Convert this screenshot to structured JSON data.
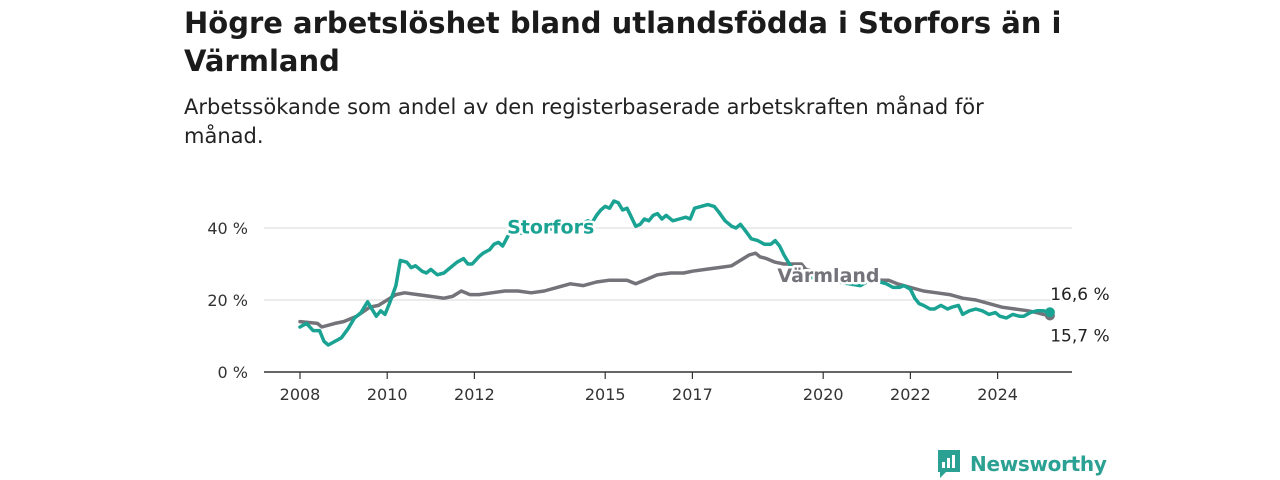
{
  "header": {
    "title": "Högre arbetslöshet bland utlandsfödda i Storfors än i Värmland",
    "subtitle": "Arbetssökande som andel av den registerbaserade arbetskraften månad för månad."
  },
  "brand": {
    "name": "Newsworthy",
    "icon": "newsworthy-logo-icon",
    "color": "#2aa193"
  },
  "chart_data": {
    "type": "line",
    "title": "Högre arbetslöshet bland utlandsfödda i Storfors än i Värmland",
    "subtitle": "Arbetssökande som andel av den registerbaserade arbetskraften månad för månad.",
    "xlabel": "",
    "ylabel": "",
    "xlim": [
      2008,
      2025.25
    ],
    "ylim": [
      0,
      50
    ],
    "grid": true,
    "legend": "inline labels",
    "x_ticks": [
      {
        "value": 2008,
        "label": "2008"
      },
      {
        "value": 2010,
        "label": "2010"
      },
      {
        "value": 2012,
        "label": "2012"
      },
      {
        "value": 2015,
        "label": "2015"
      },
      {
        "value": 2017,
        "label": "2017"
      },
      {
        "value": 2020,
        "label": "2020"
      },
      {
        "value": 2022,
        "label": "2022"
      },
      {
        "value": 2024,
        "label": "2024"
      }
    ],
    "y_ticks": [
      {
        "value": 0,
        "label": "0 %"
      },
      {
        "value": 20,
        "label": "20 %"
      },
      {
        "value": 40,
        "label": "40 %"
      }
    ],
    "series": [
      {
        "name": "Storfors",
        "color": "#1aa393",
        "label_at": [
          2012.75,
          38.5
        ],
        "end_label": "16,6 %",
        "end_label_position": "above",
        "points": [
          [
            2008.0,
            12.5
          ],
          [
            2008.15,
            13.5
          ],
          [
            2008.3,
            11.5
          ],
          [
            2008.45,
            11.5
          ],
          [
            2008.55,
            8.5
          ],
          [
            2008.65,
            7.5
          ],
          [
            2008.8,
            8.5
          ],
          [
            2008.95,
            9.5
          ],
          [
            2009.1,
            12.0
          ],
          [
            2009.25,
            15.0
          ],
          [
            2009.4,
            16.5
          ],
          [
            2009.55,
            19.5
          ],
          [
            2009.65,
            17.5
          ],
          [
            2009.75,
            15.5
          ],
          [
            2009.85,
            17.0
          ],
          [
            2009.95,
            16.0
          ],
          [
            2010.05,
            19.0
          ],
          [
            2010.2,
            24.0
          ],
          [
            2010.3,
            31.0
          ],
          [
            2010.45,
            30.5
          ],
          [
            2010.55,
            29.0
          ],
          [
            2010.65,
            29.5
          ],
          [
            2010.8,
            28.0
          ],
          [
            2010.9,
            27.5
          ],
          [
            2011.0,
            28.5
          ],
          [
            2011.15,
            27.0
          ],
          [
            2011.3,
            27.5
          ],
          [
            2011.45,
            29.0
          ],
          [
            2011.6,
            30.5
          ],
          [
            2011.75,
            31.5
          ],
          [
            2011.85,
            30.0
          ],
          [
            2011.95,
            30.0
          ],
          [
            2012.1,
            32.0
          ],
          [
            2012.2,
            33.0
          ],
          [
            2012.35,
            34.0
          ],
          [
            2012.45,
            35.5
          ],
          [
            2012.55,
            36.0
          ],
          [
            2012.65,
            35.0
          ],
          [
            2012.8,
            38.5
          ],
          [
            2012.95,
            39.0
          ],
          [
            2013.1,
            38.5
          ],
          [
            2014.45,
            41.0
          ],
          [
            2014.6,
            42.0
          ],
          [
            2014.7,
            41.5
          ],
          [
            2014.8,
            43.5
          ],
          [
            2014.9,
            45.0
          ],
          [
            2015.0,
            46.0
          ],
          [
            2015.1,
            45.5
          ],
          [
            2015.2,
            47.5
          ],
          [
            2015.3,
            47.0
          ],
          [
            2015.4,
            45.0
          ],
          [
            2015.5,
            45.5
          ],
          [
            2015.6,
            43.0
          ],
          [
            2015.7,
            40.5
          ],
          [
            2015.8,
            41.0
          ],
          [
            2015.9,
            42.5
          ],
          [
            2016.0,
            42.0
          ],
          [
            2016.1,
            43.5
          ],
          [
            2016.2,
            44.0
          ],
          [
            2016.3,
            42.5
          ],
          [
            2016.4,
            43.5
          ],
          [
            2016.55,
            42.0
          ],
          [
            2016.7,
            42.5
          ],
          [
            2016.85,
            43.0
          ],
          [
            2016.95,
            42.5
          ],
          [
            2017.05,
            45.5
          ],
          [
            2017.2,
            46.0
          ],
          [
            2017.35,
            46.5
          ],
          [
            2017.5,
            46.0
          ],
          [
            2017.6,
            44.5
          ],
          [
            2017.75,
            42.0
          ],
          [
            2017.9,
            40.5
          ],
          [
            2018.0,
            40.0
          ],
          [
            2018.1,
            41.0
          ],
          [
            2018.2,
            39.5
          ],
          [
            2018.35,
            37.0
          ],
          [
            2018.5,
            36.5
          ],
          [
            2018.65,
            35.5
          ],
          [
            2018.8,
            35.5
          ],
          [
            2018.9,
            36.5
          ],
          [
            2019.0,
            35.0
          ],
          [
            2019.1,
            32.5
          ],
          [
            2019.25,
            29.5
          ],
          [
            2019.35,
            27.0
          ],
          [
            2020.85,
            24.0
          ],
          [
            2021.0,
            25.0
          ],
          [
            2021.15,
            26.5
          ],
          [
            2021.3,
            25.0
          ],
          [
            2021.45,
            24.5
          ],
          [
            2021.6,
            23.5
          ],
          [
            2021.75,
            23.5
          ],
          [
            2021.85,
            24.0
          ],
          [
            2022.0,
            23.0
          ],
          [
            2022.1,
            20.5
          ],
          [
            2022.2,
            19.0
          ],
          [
            2022.3,
            18.5
          ],
          [
            2022.45,
            17.5
          ],
          [
            2022.55,
            17.5
          ],
          [
            2022.7,
            18.5
          ],
          [
            2022.85,
            17.5
          ],
          [
            2022.95,
            18.0
          ],
          [
            2023.1,
            18.5
          ],
          [
            2023.2,
            16.0
          ],
          [
            2023.35,
            17.0
          ],
          [
            2023.5,
            17.5
          ],
          [
            2023.65,
            17.0
          ],
          [
            2023.8,
            16.0
          ],
          [
            2023.95,
            16.5
          ],
          [
            2024.05,
            15.5
          ],
          [
            2024.2,
            15.0
          ],
          [
            2024.35,
            16.0
          ],
          [
            2024.5,
            15.5
          ],
          [
            2024.6,
            15.5
          ],
          [
            2024.75,
            16.5
          ],
          [
            2024.9,
            17.0
          ],
          [
            2025.05,
            17.0
          ],
          [
            2025.2,
            16.6
          ]
        ]
      },
      {
        "name": "Värmland",
        "color": "#74737a",
        "label_at": [
          2018.95,
          25.0
        ],
        "end_label": "15,7 %",
        "end_label_position": "below",
        "points": [
          [
            2008.0,
            14.0
          ],
          [
            2008.4,
            13.5
          ],
          [
            2008.5,
            12.5
          ],
          [
            2008.8,
            13.5
          ],
          [
            2009.0,
            14.0
          ],
          [
            2009.3,
            15.5
          ],
          [
            2009.6,
            18.0
          ],
          [
            2009.8,
            18.5
          ],
          [
            2010.0,
            20.0
          ],
          [
            2010.2,
            21.5
          ],
          [
            2010.4,
            22.0
          ],
          [
            2010.7,
            21.5
          ],
          [
            2011.0,
            21.0
          ],
          [
            2011.3,
            20.5
          ],
          [
            2011.5,
            21.0
          ],
          [
            2011.7,
            22.5
          ],
          [
            2011.9,
            21.5
          ],
          [
            2012.1,
            21.5
          ],
          [
            2012.4,
            22.0
          ],
          [
            2012.7,
            22.5
          ],
          [
            2013.0,
            22.5
          ],
          [
            2013.3,
            22.0
          ],
          [
            2013.6,
            22.5
          ],
          [
            2013.9,
            23.5
          ],
          [
            2014.2,
            24.5
          ],
          [
            2014.5,
            24.0
          ],
          [
            2014.8,
            25.0
          ],
          [
            2015.1,
            25.5
          ],
          [
            2015.5,
            25.5
          ],
          [
            2015.7,
            24.5
          ],
          [
            2015.9,
            25.5
          ],
          [
            2016.2,
            27.0
          ],
          [
            2016.5,
            27.5
          ],
          [
            2016.8,
            27.5
          ],
          [
            2017.0,
            28.0
          ],
          [
            2017.3,
            28.5
          ],
          [
            2017.6,
            29.0
          ],
          [
            2017.9,
            29.5
          ],
          [
            2018.1,
            31.0
          ],
          [
            2018.3,
            32.5
          ],
          [
            2018.45,
            33.0
          ],
          [
            2018.55,
            32.0
          ],
          [
            2018.7,
            31.5
          ],
          [
            2018.9,
            30.5
          ],
          [
            2019.1,
            30.0
          ],
          [
            2019.35,
            30.0
          ],
          [
            2019.5,
            30.0
          ],
          [
            2019.6,
            28.5
          ],
          [
            2019.75,
            28.0
          ],
          [
            2021.35,
            25.5
          ],
          [
            2021.5,
            25.5
          ],
          [
            2021.7,
            24.5
          ],
          [
            2022.0,
            23.5
          ],
          [
            2022.3,
            22.5
          ],
          [
            2022.6,
            22.0
          ],
          [
            2022.9,
            21.5
          ],
          [
            2023.2,
            20.5
          ],
          [
            2023.5,
            20.0
          ],
          [
            2023.8,
            19.0
          ],
          [
            2024.1,
            18.0
          ],
          [
            2024.4,
            17.5
          ],
          [
            2024.7,
            17.0
          ],
          [
            2024.9,
            16.5
          ],
          [
            2025.05,
            16.0
          ],
          [
            2025.2,
            15.7
          ]
        ]
      }
    ]
  }
}
